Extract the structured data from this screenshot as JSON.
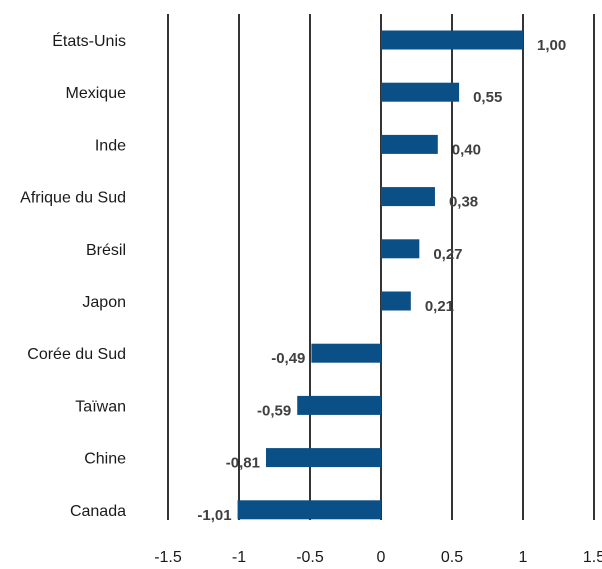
{
  "chart_data": {
    "type": "bar",
    "orientation": "horizontal",
    "categories": [
      "États-Unis",
      "Mexique",
      "Inde",
      "Afrique du Sud",
      "Brésil",
      "Japon",
      "Corée du Sud",
      "Taïwan",
      "Chine",
      "Canada"
    ],
    "values": [
      1.0,
      0.55,
      0.4,
      0.38,
      0.27,
      0.21,
      -0.49,
      -0.59,
      -0.81,
      -1.01
    ],
    "value_labels": [
      "1,00",
      "0,55",
      "0,40",
      "0,38",
      "0,27",
      "0,21",
      "-0,49",
      "-0,59",
      "-0,81",
      "-1,01"
    ],
    "xlim": [
      -1.5,
      1.5
    ],
    "x_ticks": [
      -1.5,
      -1,
      -0.5,
      0,
      0.5,
      1,
      1.5
    ],
    "x_tick_labels": [
      "-1.5",
      "-1",
      "-0.5",
      "0",
      "0.5",
      "1",
      "1.5"
    ],
    "grid": "vertical",
    "bar_color": "#0b4f87",
    "title": "",
    "xlabel": "",
    "ylabel": ""
  }
}
